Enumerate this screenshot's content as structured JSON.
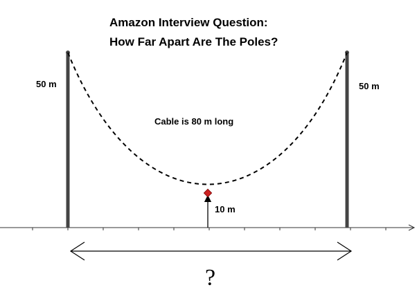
{
  "title": {
    "line1": "Amazon Interview Question:",
    "line2": "How Far Apart Are The Poles?"
  },
  "labels": {
    "left_pole_height": "50 m",
    "right_pole_height": "50 m",
    "cable_length": "Cable is 80 m long",
    "sag_height": "10 m",
    "distance_unknown": "?"
  },
  "colors": {
    "pole": "#444444",
    "cable": "#000000",
    "lowest_point_marker": "#cc2222",
    "ground": "#333333"
  }
}
